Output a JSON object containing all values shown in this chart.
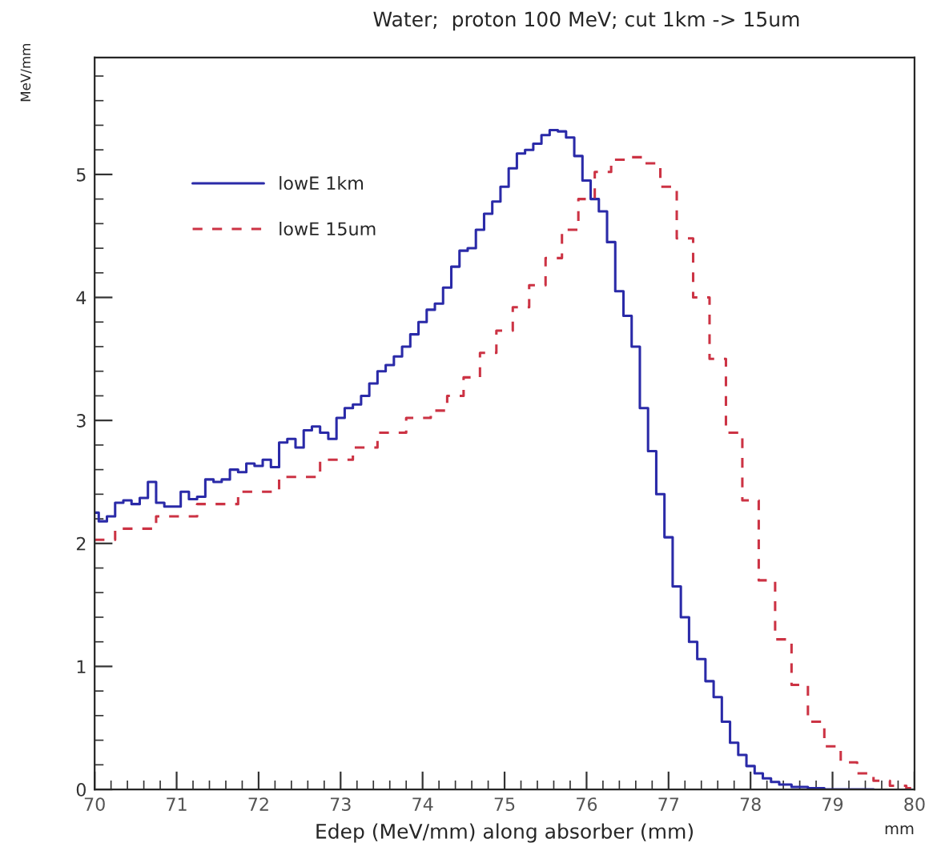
{
  "chart_data": {
    "type": "step",
    "title": "Water;  proton 100 MeV; cut 1km -> 15um",
    "xlabel": "Edep (MeV/mm) along absorber (mm)",
    "ylabel": "MeV/mm",
    "annotations": [
      "mm"
    ],
    "series": [
      {
        "name": "lowE 1km",
        "color": "#2a2aa8",
        "line_style": "solid",
        "x": [
          70.0,
          70.1,
          70.2,
          70.3,
          70.4,
          70.5,
          70.6,
          70.7,
          70.8,
          70.9,
          71.0,
          71.1,
          71.2,
          71.3,
          71.4,
          71.5,
          71.6,
          71.7,
          71.8,
          71.9,
          72.0,
          72.1,
          72.2,
          72.3,
          72.4,
          72.5,
          72.6,
          72.7,
          72.8,
          72.9,
          73.0,
          73.1,
          73.2,
          73.3,
          73.4,
          73.5,
          73.6,
          73.7,
          73.8,
          73.9,
          74.0,
          74.1,
          74.2,
          74.3,
          74.4,
          74.5,
          74.6,
          74.7,
          74.8,
          74.9,
          75.0,
          75.1,
          75.2,
          75.3,
          75.4,
          75.5,
          75.6,
          75.7,
          75.8,
          75.9,
          76.0,
          76.1,
          76.2,
          76.3,
          76.4,
          76.5,
          76.6,
          76.7,
          76.8,
          76.9,
          77.0,
          77.1,
          77.2,
          77.3,
          77.4,
          77.5,
          77.6,
          77.7,
          77.8,
          77.9,
          78.0,
          78.1,
          78.2,
          78.3,
          78.4,
          78.6,
          78.8,
          79.0,
          79.5
        ],
        "values": [
          2.25,
          2.18,
          2.22,
          2.33,
          2.35,
          2.32,
          2.37,
          2.5,
          2.33,
          2.3,
          2.3,
          2.42,
          2.36,
          2.38,
          2.52,
          2.5,
          2.52,
          2.6,
          2.58,
          2.65,
          2.63,
          2.68,
          2.62,
          2.82,
          2.85,
          2.78,
          2.92,
          2.95,
          2.9,
          2.85,
          3.02,
          3.1,
          3.13,
          3.2,
          3.3,
          3.4,
          3.45,
          3.52,
          3.6,
          3.7,
          3.8,
          3.9,
          3.95,
          4.08,
          4.25,
          4.38,
          4.4,
          4.55,
          4.68,
          4.78,
          4.9,
          5.05,
          5.17,
          5.2,
          5.25,
          5.32,
          5.36,
          5.35,
          5.3,
          5.15,
          4.95,
          4.8,
          4.7,
          4.45,
          4.05,
          3.85,
          3.6,
          3.1,
          2.75,
          2.4,
          2.05,
          1.65,
          1.4,
          1.2,
          1.06,
          0.88,
          0.75,
          0.55,
          0.38,
          0.28,
          0.19,
          0.13,
          0.09,
          0.06,
          0.04,
          0.02,
          0.01,
          0,
          0
        ]
      },
      {
        "name": "lowE 15um",
        "color": "#cc3344",
        "line_style": "dashed",
        "x": [
          70.0,
          70.5,
          71.0,
          71.5,
          72.0,
          72.5,
          73.0,
          73.3,
          73.6,
          74.0,
          74.2,
          74.4,
          74.6,
          74.8,
          75.0,
          75.2,
          75.4,
          75.6,
          75.8,
          76.0,
          76.2,
          76.4,
          76.6,
          76.8,
          77.0,
          77.2,
          77.4,
          77.6,
          77.8,
          78.0,
          78.2,
          78.4,
          78.6,
          78.8,
          79.0,
          79.2,
          79.4,
          79.6,
          79.8,
          80.0
        ],
        "values": [
          2.03,
          2.12,
          2.22,
          2.32,
          2.42,
          2.54,
          2.68,
          2.78,
          2.9,
          3.02,
          3.08,
          3.2,
          3.35,
          3.55,
          3.73,
          3.92,
          4.1,
          4.32,
          4.55,
          4.8,
          5.02,
          5.12,
          5.14,
          5.09,
          4.9,
          4.48,
          4.0,
          3.5,
          2.9,
          2.35,
          1.7,
          1.22,
          0.85,
          0.55,
          0.35,
          0.22,
          0.13,
          0.07,
          0.03,
          0.01
        ]
      }
    ],
    "xlim": [
      70,
      80
    ],
    "ylim": [
      0,
      5.95
    ],
    "xticks": [
      70,
      {
        "value": 70.2,
        "label": null
      },
      {
        "value": 70.4,
        "label": null
      },
      {
        "value": 70.6,
        "label": null
      },
      {
        "value": 70.8,
        "label": null
      },
      71,
      {
        "value": 71.2,
        "label": null
      },
      {
        "value": 71.4,
        "label": null
      },
      {
        "value": 71.6,
        "label": null
      },
      {
        "value": 71.8,
        "label": null
      },
      72,
      {
        "value": 72.2,
        "label": null
      },
      {
        "value": 72.4,
        "label": null
      },
      {
        "value": 72.6,
        "label": null
      },
      {
        "value": 72.8,
        "label": null
      },
      73,
      {
        "value": 73.2,
        "label": null
      },
      {
        "value": 73.4,
        "label": null
      },
      {
        "value": 73.6,
        "label": null
      },
      {
        "value": 73.8,
        "label": null
      },
      74,
      {
        "value": 74.2,
        "label": null
      },
      {
        "value": 74.4,
        "label": null
      },
      {
        "value": 74.6,
        "label": null
      },
      {
        "value": 74.8,
        "label": null
      },
      75,
      {
        "value": 75.2,
        "label": null
      },
      {
        "value": 75.4,
        "label": null
      },
      {
        "value": 75.6,
        "label": null
      },
      {
        "value": 75.8,
        "label": null
      },
      76,
      {
        "value": 76.2,
        "label": null
      },
      {
        "value": 76.4,
        "label": null
      },
      {
        "value": 76.6,
        "label": null
      },
      {
        "value": 76.8,
        "label": null
      },
      77,
      {
        "value": 77.2,
        "label": null
      },
      {
        "value": 77.4,
        "label": null
      },
      {
        "value": 77.6,
        "label": null
      },
      {
        "value": 77.8,
        "label": null
      },
      78,
      {
        "value": 78.2,
        "label": null
      },
      {
        "value": 78.4,
        "label": null
      },
      {
        "value": 78.6,
        "label": null
      },
      {
        "value": 78.8,
        "label": null
      },
      79,
      {
        "value": 79.2,
        "label": null
      },
      {
        "value": 79.4,
        "label": null
      },
      {
        "value": 79.6,
        "label": null
      },
      {
        "value": 79.8,
        "label": null
      },
      80
    ],
    "yticks": [
      0,
      {
        "value": 0.2,
        "label": null
      },
      {
        "value": 0.4,
        "label": null
      },
      {
        "value": 0.6,
        "label": null
      },
      {
        "value": 0.8,
        "label": null
      },
      1,
      {
        "value": 1.2,
        "label": null
      },
      {
        "value": 1.4,
        "label": null
      },
      {
        "value": 1.6,
        "label": null
      },
      {
        "value": 1.8,
        "label": null
      },
      2,
      {
        "value": 2.2,
        "label": null
      },
      {
        "value": 2.4,
        "label": null
      },
      {
        "value": 2.6,
        "label": null
      },
      {
        "value": 2.8,
        "label": null
      },
      3,
      {
        "value": 3.2,
        "label": null
      },
      {
        "value": 3.4,
        "label": null
      },
      {
        "value": 3.6,
        "label": null
      },
      {
        "value": 3.8,
        "label": null
      },
      4,
      {
        "value": 4.2,
        "label": null
      },
      {
        "value": 4.4,
        "label": null
      },
      {
        "value": 4.6,
        "label": null
      },
      {
        "value": 4.8,
        "label": null
      },
      5,
      {
        "value": 5.2,
        "label": null
      },
      {
        "value": 5.4,
        "label": null
      },
      {
        "value": 5.6,
        "label": null
      },
      {
        "value": 5.8,
        "label": null
      }
    ],
    "grid": false,
    "legend": "top left"
  }
}
